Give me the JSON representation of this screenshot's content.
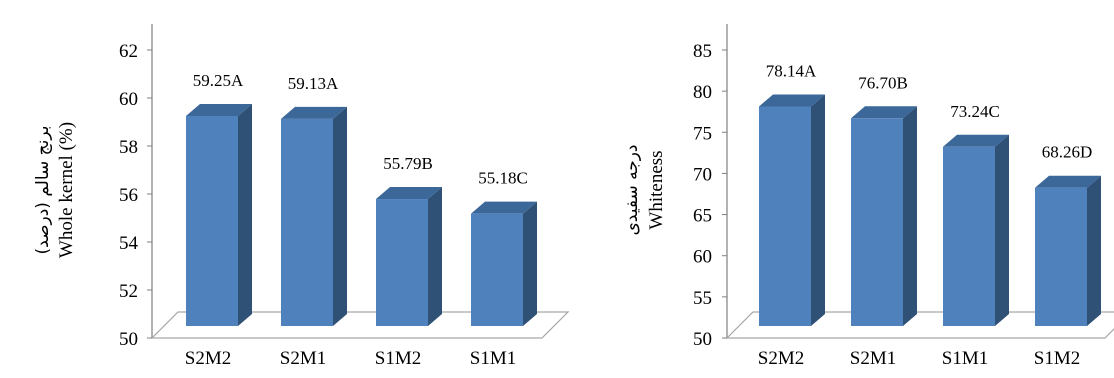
{
  "colors": {
    "bar_front": "#4F81BD",
    "bar_side": "#2F5176",
    "bar_top": "#3C6899",
    "floor_line": "#A6A6A6",
    "axis": "#808080"
  },
  "chart_data": [
    {
      "type": "bar",
      "style": "3d-clustered-column",
      "categories": [
        "S2M2",
        "S2M1",
        "S1M2",
        "S1M1"
      ],
      "values": [
        59.25,
        59.13,
        55.79,
        55.18
      ],
      "data_labels": [
        "59.25A",
        "59.13A",
        "55.79B",
        "55.18C"
      ],
      "ylabel_line1": "برنج سالم (درصد)",
      "ylabel_line2": "Whole  kernel  (%)",
      "ylim": [
        50,
        62
      ],
      "yticks": [
        "50",
        "52",
        "54",
        "56",
        "58",
        "60",
        "62"
      ],
      "grid": false,
      "legend": "none"
    },
    {
      "type": "bar",
      "style": "3d-clustered-column",
      "categories": [
        "S2M2",
        "S2M1",
        "S1M1",
        "S1M2"
      ],
      "values": [
        78.14,
        76.7,
        73.24,
        68.26
      ],
      "data_labels": [
        "78.14A",
        "76.70B",
        "73.24C",
        "68.26D"
      ],
      "ylabel_line1": "درجه سفیدی",
      "ylabel_line2": "Whiteness",
      "ylim": [
        50,
        85
      ],
      "yticks": [
        "50",
        "55",
        "60",
        "65",
        "70",
        "75",
        "80",
        "85"
      ],
      "grid": false,
      "legend": "none"
    }
  ]
}
